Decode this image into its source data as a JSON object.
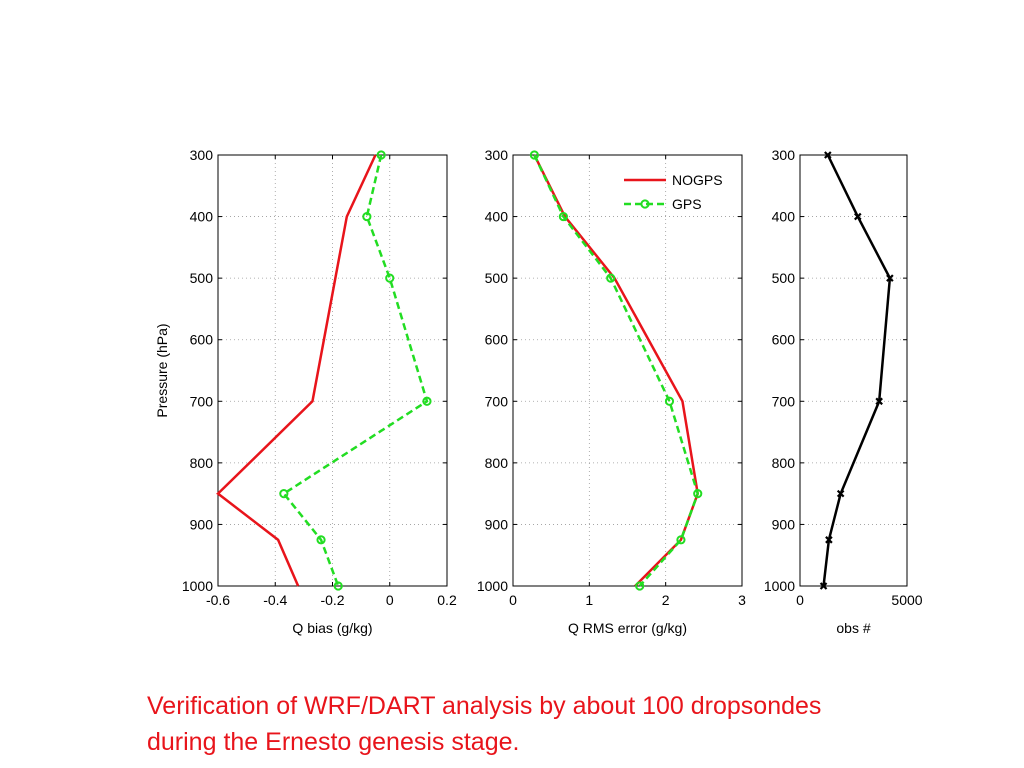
{
  "caption": {
    "line1": "Verification of WRF/DART analysis by about 100 dropsondes",
    "line2": "during the Ernesto genesis stage."
  },
  "colors": {
    "nogps": "#e8141b",
    "gps": "#22dd22",
    "obs": "#000000",
    "caption": "#e8141b"
  },
  "chart_data": [
    {
      "type": "line",
      "xlabel": "Q bias (g/kg)",
      "ylabel": "Pressure (hPa)",
      "xlim": [
        -0.6,
        0.2
      ],
      "ylim": [
        1000,
        300
      ],
      "y_reversed": true,
      "xticks": [
        -0.6,
        -0.4,
        -0.2,
        0,
        0.2
      ],
      "xtick_labels": [
        "-0.6",
        "-0.4",
        "-0.2",
        "0",
        "0.2"
      ],
      "yticks": [
        300,
        400,
        500,
        600,
        700,
        800,
        900,
        1000
      ],
      "grid": true,
      "series": [
        {
          "name": "NOGPS",
          "style": "solid",
          "color": "#e8141b",
          "marker": "none",
          "y": [
            300,
            400,
            500,
            600,
            700,
            850,
            925,
            1000
          ],
          "x": [
            -0.05,
            -0.15,
            -0.19,
            -0.23,
            -0.27,
            -0.6,
            -0.39,
            -0.32
          ]
        },
        {
          "name": "GPS",
          "style": "dashed",
          "color": "#22dd22",
          "marker": "circle",
          "y": [
            300,
            400,
            500,
            700,
            850,
            925,
            1000
          ],
          "x": [
            -0.03,
            -0.08,
            0.0,
            0.13,
            -0.37,
            -0.24,
            -0.18
          ]
        }
      ]
    },
    {
      "type": "line",
      "xlabel": "Q RMS error (g/kg)",
      "ylabel": "",
      "xlim": [
        0,
        3
      ],
      "ylim": [
        1000,
        300
      ],
      "y_reversed": true,
      "xticks": [
        0,
        1,
        2,
        3
      ],
      "xtick_labels": [
        "0",
        "1",
        "2",
        "3"
      ],
      "yticks": [
        300,
        400,
        500,
        600,
        700,
        800,
        900,
        1000
      ],
      "grid": true,
      "legend": {
        "placement": "top-right",
        "entries": [
          "NOGPS",
          "GPS"
        ]
      },
      "series": [
        {
          "name": "NOGPS",
          "style": "solid",
          "color": "#e8141b",
          "marker": "none",
          "y": [
            300,
            400,
            500,
            700,
            850,
            925,
            1000
          ],
          "x": [
            0.28,
            0.68,
            1.33,
            2.22,
            2.42,
            2.2,
            1.6
          ]
        },
        {
          "name": "GPS",
          "style": "dashed",
          "color": "#22dd22",
          "marker": "circle",
          "y": [
            300,
            400,
            500,
            700,
            850,
            925,
            1000
          ],
          "x": [
            0.28,
            0.66,
            1.28,
            2.05,
            2.42,
            2.2,
            1.66
          ]
        }
      ]
    },
    {
      "type": "line",
      "xlabel": "obs #",
      "ylabel": "",
      "xlim": [
        0,
        5000
      ],
      "ylim": [
        1000,
        300
      ],
      "y_reversed": true,
      "xticks": [
        0,
        5000
      ],
      "xtick_labels": [
        "0",
        "5000"
      ],
      "yticks": [
        300,
        400,
        500,
        600,
        700,
        800,
        900,
        1000
      ],
      "grid": true,
      "series": [
        {
          "name": "",
          "style": "solid",
          "color": "#000000",
          "marker": "x",
          "y": [
            300,
            400,
            500,
            700,
            850,
            925,
            1000
          ],
          "x": [
            1300,
            2700,
            4200,
            3700,
            1900,
            1350,
            1100
          ]
        }
      ]
    }
  ]
}
